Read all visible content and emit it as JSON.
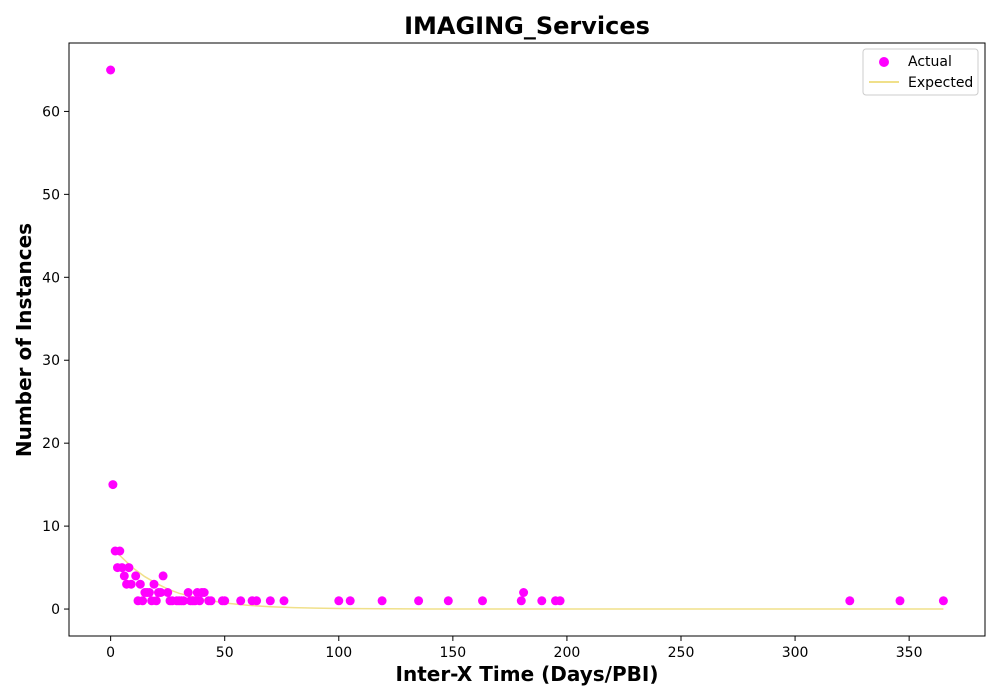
{
  "chart_data": {
    "type": "scatter",
    "title": "IMAGING_Services",
    "xlabel": "Inter-X Time (Days/PBI)",
    "ylabel": "Number of Instances",
    "xlim": [
      -18.25,
      383.25
    ],
    "ylim": [
      -3.25,
      68.25
    ],
    "xticks": [
      0,
      50,
      100,
      150,
      200,
      250,
      300,
      350
    ],
    "yticks": [
      0,
      10,
      20,
      30,
      40,
      50,
      60
    ],
    "grid": false,
    "legend_position": "upper right",
    "series": [
      {
        "name": "Actual",
        "kind": "scatter",
        "color": "#ff00ff",
        "points": [
          [
            0,
            65
          ],
          [
            1,
            15
          ],
          [
            2,
            7
          ],
          [
            3,
            5
          ],
          [
            4,
            7
          ],
          [
            5,
            5
          ],
          [
            6,
            4
          ],
          [
            7,
            3
          ],
          [
            8,
            5
          ],
          [
            9,
            3
          ],
          [
            11,
            4
          ],
          [
            12,
            1
          ],
          [
            13,
            3
          ],
          [
            14,
            1
          ],
          [
            15,
            2
          ],
          [
            16,
            2
          ],
          [
            17,
            2
          ],
          [
            18,
            1
          ],
          [
            19,
            3
          ],
          [
            20,
            1
          ],
          [
            21,
            2
          ],
          [
            22,
            2
          ],
          [
            23,
            4
          ],
          [
            25,
            2
          ],
          [
            26,
            1
          ],
          [
            27,
            1
          ],
          [
            29,
            1
          ],
          [
            30,
            1
          ],
          [
            31,
            1
          ],
          [
            32,
            1
          ],
          [
            34,
            2
          ],
          [
            35,
            1
          ],
          [
            36,
            1
          ],
          [
            37,
            1
          ],
          [
            38,
            2
          ],
          [
            39,
            1
          ],
          [
            40,
            2
          ],
          [
            41,
            2
          ],
          [
            43,
            1
          ],
          [
            44,
            1
          ],
          [
            49,
            1
          ],
          [
            50,
            1
          ],
          [
            57,
            1
          ],
          [
            62,
            1
          ],
          [
            64,
            1
          ],
          [
            70,
            1
          ],
          [
            76,
            1
          ],
          [
            100,
            1
          ],
          [
            105,
            1
          ],
          [
            119,
            1
          ],
          [
            135,
            1
          ],
          [
            148,
            1
          ],
          [
            163,
            1
          ],
          [
            180,
            1
          ],
          [
            181,
            2
          ],
          [
            189,
            1
          ],
          [
            195,
            1
          ],
          [
            197,
            1
          ],
          [
            324,
            1
          ],
          [
            346,
            1
          ],
          [
            365,
            1
          ]
        ]
      },
      {
        "name": "Expected",
        "kind": "line",
        "color": "#f0e08a",
        "decay": 0.04,
        "points": [
          [
            1,
            7.3
          ],
          [
            5,
            6.2
          ],
          [
            10,
            4.9
          ],
          [
            15,
            3.9
          ],
          [
            20,
            3.1
          ],
          [
            25,
            2.4
          ],
          [
            30,
            1.9
          ],
          [
            40,
            1.2
          ],
          [
            50,
            0.73
          ],
          [
            60,
            0.45
          ],
          [
            70,
            0.28
          ],
          [
            80,
            0.17
          ],
          [
            90,
            0.11
          ],
          [
            100,
            0.07
          ],
          [
            120,
            0.03
          ],
          [
            140,
            0.01
          ],
          [
            160,
            0.0
          ],
          [
            200,
            0.0
          ],
          [
            250,
            0.0
          ],
          [
            300,
            0.0
          ],
          [
            365,
            0.0
          ]
        ]
      }
    ]
  }
}
